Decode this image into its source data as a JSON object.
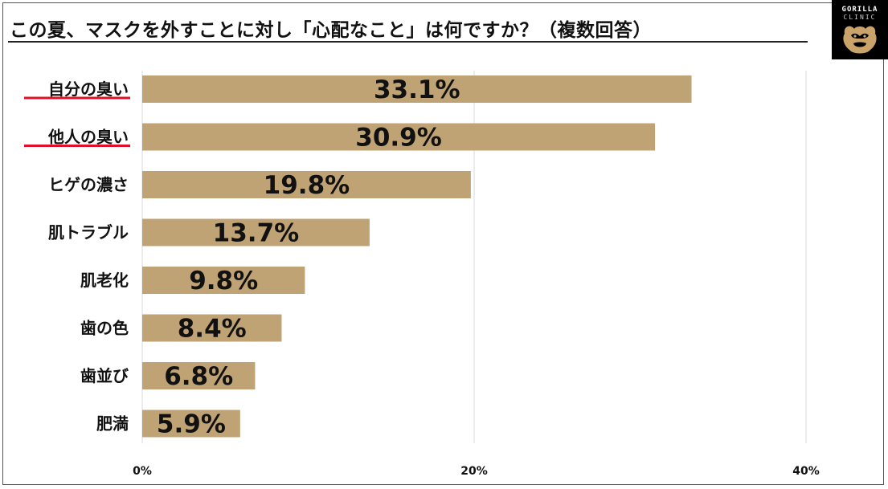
{
  "chart_data": {
    "type": "bar",
    "orientation": "horizontal",
    "title": "この夏、マスクを外すことに対し「心配なこと」は何ですか？（複数回答）",
    "categories": [
      "自分の臭い",
      "他人の臭い",
      "ヒゲの濃さ",
      "肌トラブル",
      "肌老化",
      "歯の色",
      "歯並び",
      "肥満"
    ],
    "values": [
      33.1,
      30.9,
      19.8,
      13.7,
      9.8,
      8.4,
      6.8,
      5.9
    ],
    "value_labels": [
      "33.1%",
      "30.9%",
      "19.8%",
      "13.7%",
      "9.8%",
      "8.4%",
      "6.8%",
      "5.9%"
    ],
    "underlined_categories": [
      "自分の臭い",
      "他人の臭い"
    ],
    "xlim": [
      0,
      40
    ],
    "xticks": [
      0,
      20,
      40
    ],
    "xtick_labels": [
      "0%",
      "20%",
      "40%"
    ],
    "grid": "vertical",
    "legend": "none",
    "colors": {
      "bar": "#bfa374",
      "underline": "#e0102a",
      "grid": "#d9d9d9"
    }
  },
  "logo": {
    "line1": "GORILLA",
    "line2": "CLINIC"
  }
}
